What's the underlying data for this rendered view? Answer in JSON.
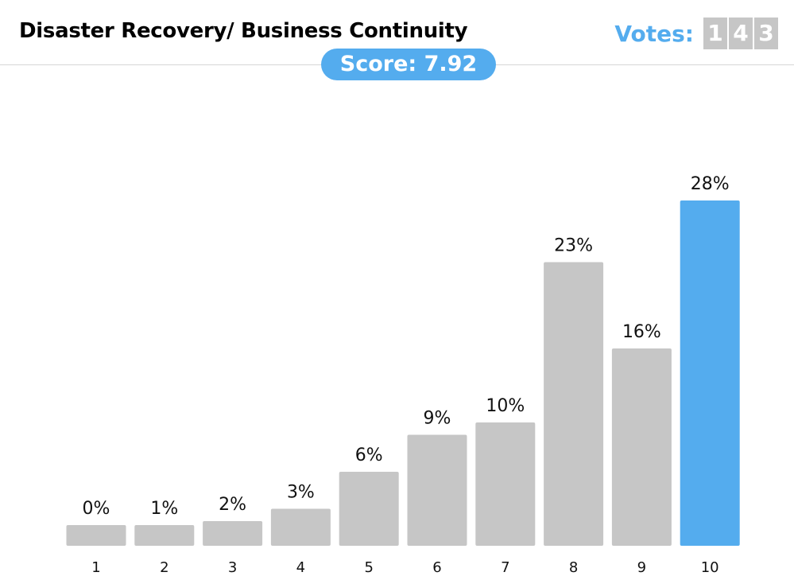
{
  "header": {
    "title": "Disaster Recovery/ Business Continuity",
    "votes_label": "Votes:",
    "votes_digits": [
      "1",
      "4",
      "3"
    ],
    "score_label": "Score:",
    "score_value": "7.92"
  },
  "colors": {
    "accent": "#54acee",
    "bar_default": "#c6c6c6",
    "bar_highlight": "#54acee"
  },
  "chart_data": {
    "type": "bar",
    "categories": [
      "1",
      "2",
      "3",
      "4",
      "5",
      "6",
      "7",
      "8",
      "9",
      "10"
    ],
    "values": [
      0,
      1,
      2,
      3,
      6,
      9,
      10,
      23,
      16,
      28
    ],
    "value_labels": [
      "0%",
      "1%",
      "2%",
      "3%",
      "6%",
      "9%",
      "10%",
      "23%",
      "16%",
      "28%"
    ],
    "highlight_index": 9,
    "xlabel": "",
    "ylabel": "",
    "ylim": [
      0,
      30
    ],
    "grid": false,
    "legend": "none"
  }
}
